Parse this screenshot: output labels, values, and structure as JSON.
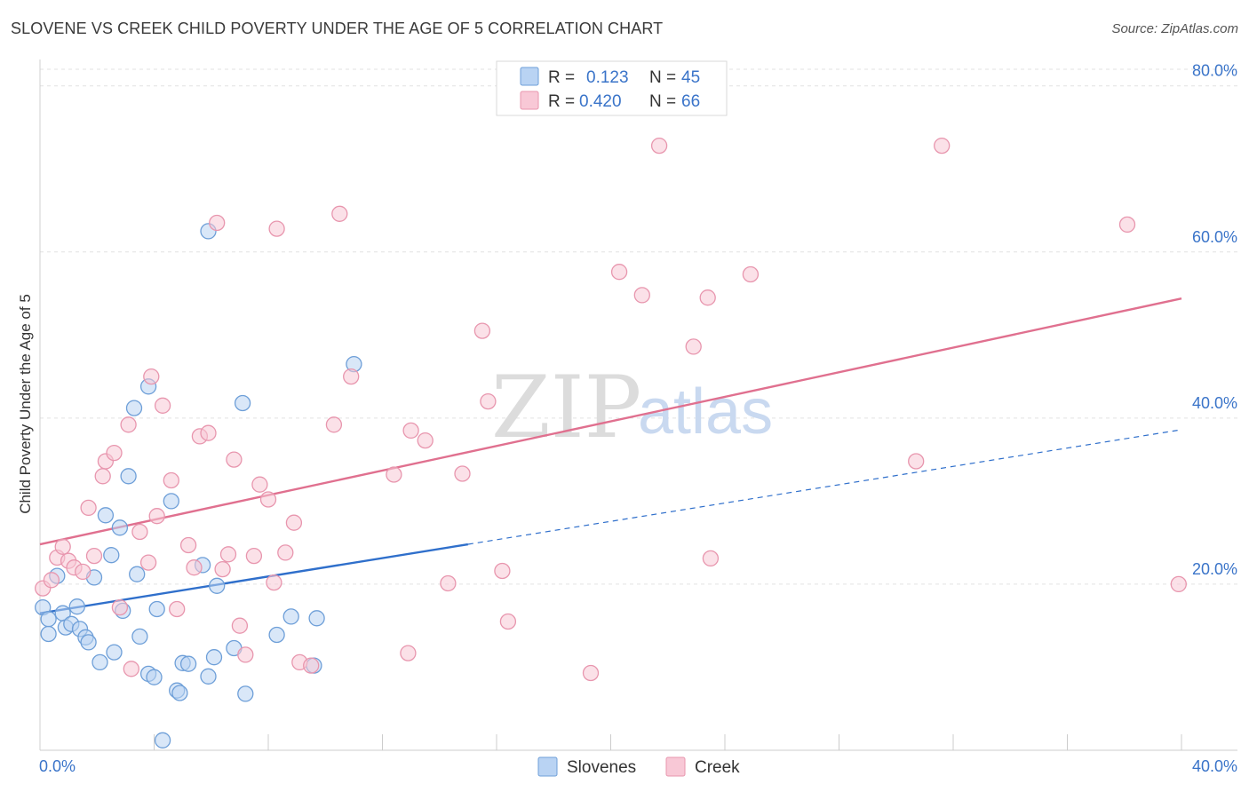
{
  "title": "SLOVENE VS CREEK CHILD POVERTY UNDER THE AGE OF 5 CORRELATION CHART",
  "source": "Source: ZipAtlas.com",
  "watermark": {
    "zip": "ZIP",
    "atlas": "atlas"
  },
  "colors": {
    "slovenes_fill": "#b9d3f3",
    "slovenes_stroke": "#6e9fd8",
    "slovenes_line": "#2f6fcb",
    "creek_fill": "#f8c8d6",
    "creek_stroke": "#e896ae",
    "creek_line": "#e0708f",
    "grid": "#e2e2e2",
    "tick_text": "#3a74c9"
  },
  "legend": {
    "rows": [
      {
        "r_label": "R =",
        "r_value": "0.123",
        "n_label": "N =",
        "n_value": "45"
      },
      {
        "r_label": "R =",
        "r_value": "0.420",
        "n_label": "N =",
        "n_value": "66"
      }
    ]
  },
  "bottom_legend": [
    "Slovenes",
    "Creek"
  ],
  "chart_data": {
    "type": "scatter",
    "title": "SLOVENE VS CREEK CHILD POVERTY UNDER THE AGE OF 5 CORRELATION CHART",
    "xlabel": "",
    "ylabel": "Child Poverty Under the Age of 5",
    "xlim": [
      0,
      40
    ],
    "ylim": [
      0,
      82
    ],
    "x_tick_labels": [
      "0.0%",
      "40.0%"
    ],
    "y_ticks": [
      20,
      40,
      60,
      80
    ],
    "y_tick_labels": [
      "20.0%",
      "40.0%",
      "60.0%",
      "80.0%"
    ],
    "grid": true,
    "legend_position": "top-center",
    "series": [
      {
        "name": "Slovenes",
        "color": "#6e9fd8",
        "points": [
          [
            0.1,
            17.2
          ],
          [
            0.3,
            15.8
          ],
          [
            0.3,
            14.0
          ],
          [
            0.6,
            21.0
          ],
          [
            0.8,
            16.5
          ],
          [
            0.9,
            14.8
          ],
          [
            1.1,
            15.2
          ],
          [
            1.3,
            17.3
          ],
          [
            1.4,
            14.6
          ],
          [
            1.6,
            13.6
          ],
          [
            1.7,
            13.0
          ],
          [
            1.9,
            20.8
          ],
          [
            2.1,
            10.6
          ],
          [
            2.3,
            28.3
          ],
          [
            2.5,
            23.5
          ],
          [
            2.6,
            11.8
          ],
          [
            2.8,
            26.8
          ],
          [
            2.9,
            16.8
          ],
          [
            3.1,
            33.0
          ],
          [
            3.3,
            41.2
          ],
          [
            3.4,
            21.2
          ],
          [
            3.5,
            13.7
          ],
          [
            3.8,
            43.8
          ],
          [
            3.8,
            9.2
          ],
          [
            4.0,
            8.8
          ],
          [
            4.1,
            17.0
          ],
          [
            4.3,
            1.2
          ],
          [
            4.6,
            30.0
          ],
          [
            4.8,
            7.2
          ],
          [
            4.9,
            6.9
          ],
          [
            5.0,
            10.5
          ],
          [
            5.2,
            10.4
          ],
          [
            5.7,
            22.3
          ],
          [
            5.9,
            62.5
          ],
          [
            5.9,
            8.9
          ],
          [
            6.1,
            11.2
          ],
          [
            6.2,
            19.8
          ],
          [
            6.8,
            12.3
          ],
          [
            7.1,
            41.8
          ],
          [
            7.2,
            6.8
          ],
          [
            8.3,
            13.9
          ],
          [
            8.8,
            16.1
          ],
          [
            9.6,
            10.2
          ],
          [
            9.7,
            15.9
          ],
          [
            11.0,
            46.5
          ]
        ],
        "trend_solid": [
          [
            0,
            16.5
          ],
          [
            15,
            24.8
          ]
        ],
        "trend_dashed": [
          [
            15,
            24.8
          ],
          [
            40,
            38.6
          ]
        ]
      },
      {
        "name": "Creek",
        "color": "#e896ae",
        "points": [
          [
            0.1,
            19.5
          ],
          [
            0.4,
            20.5
          ],
          [
            0.6,
            23.2
          ],
          [
            0.8,
            24.5
          ],
          [
            1.0,
            22.8
          ],
          [
            1.2,
            22.0
          ],
          [
            1.5,
            21.5
          ],
          [
            1.7,
            29.2
          ],
          [
            1.9,
            23.4
          ],
          [
            2.2,
            33.0
          ],
          [
            2.3,
            34.8
          ],
          [
            2.6,
            35.8
          ],
          [
            2.8,
            17.2
          ],
          [
            3.1,
            39.2
          ],
          [
            3.2,
            9.8
          ],
          [
            3.5,
            26.3
          ],
          [
            3.8,
            22.6
          ],
          [
            3.9,
            45.0
          ],
          [
            4.1,
            28.2
          ],
          [
            4.3,
            41.5
          ],
          [
            4.6,
            32.5
          ],
          [
            4.8,
            17.0
          ],
          [
            5.2,
            24.7
          ],
          [
            5.4,
            22.0
          ],
          [
            5.6,
            37.8
          ],
          [
            5.9,
            38.2
          ],
          [
            6.2,
            63.5
          ],
          [
            6.4,
            21.8
          ],
          [
            6.6,
            23.6
          ],
          [
            6.8,
            35.0
          ],
          [
            7.0,
            15.0
          ],
          [
            7.2,
            11.5
          ],
          [
            7.5,
            23.4
          ],
          [
            7.7,
            32.0
          ],
          [
            8.0,
            30.2
          ],
          [
            8.2,
            20.2
          ],
          [
            8.3,
            62.8
          ],
          [
            8.6,
            23.8
          ],
          [
            8.9,
            27.4
          ],
          [
            9.1,
            10.6
          ],
          [
            9.5,
            10.2
          ],
          [
            10.3,
            39.2
          ],
          [
            10.5,
            64.6
          ],
          [
            10.9,
            45.0
          ],
          [
            12.4,
            33.2
          ],
          [
            12.9,
            11.7
          ],
          [
            13.0,
            38.5
          ],
          [
            13.5,
            37.3
          ],
          [
            14.3,
            20.1
          ],
          [
            14.8,
            33.3
          ],
          [
            15.5,
            50.5
          ],
          [
            15.7,
            42.0
          ],
          [
            16.2,
            21.6
          ],
          [
            16.4,
            15.5
          ],
          [
            19.3,
            9.3
          ],
          [
            20.3,
            57.6
          ],
          [
            21.1,
            54.8
          ],
          [
            21.7,
            72.8
          ],
          [
            22.9,
            48.6
          ],
          [
            23.4,
            54.5
          ],
          [
            23.5,
            23.1
          ],
          [
            24.9,
            57.3
          ],
          [
            30.7,
            34.8
          ],
          [
            31.6,
            72.8
          ],
          [
            38.1,
            63.3
          ],
          [
            39.9,
            20.0
          ]
        ],
        "trend_solid": [
          [
            0,
            24.8
          ],
          [
            40,
            54.4
          ]
        ]
      }
    ]
  }
}
